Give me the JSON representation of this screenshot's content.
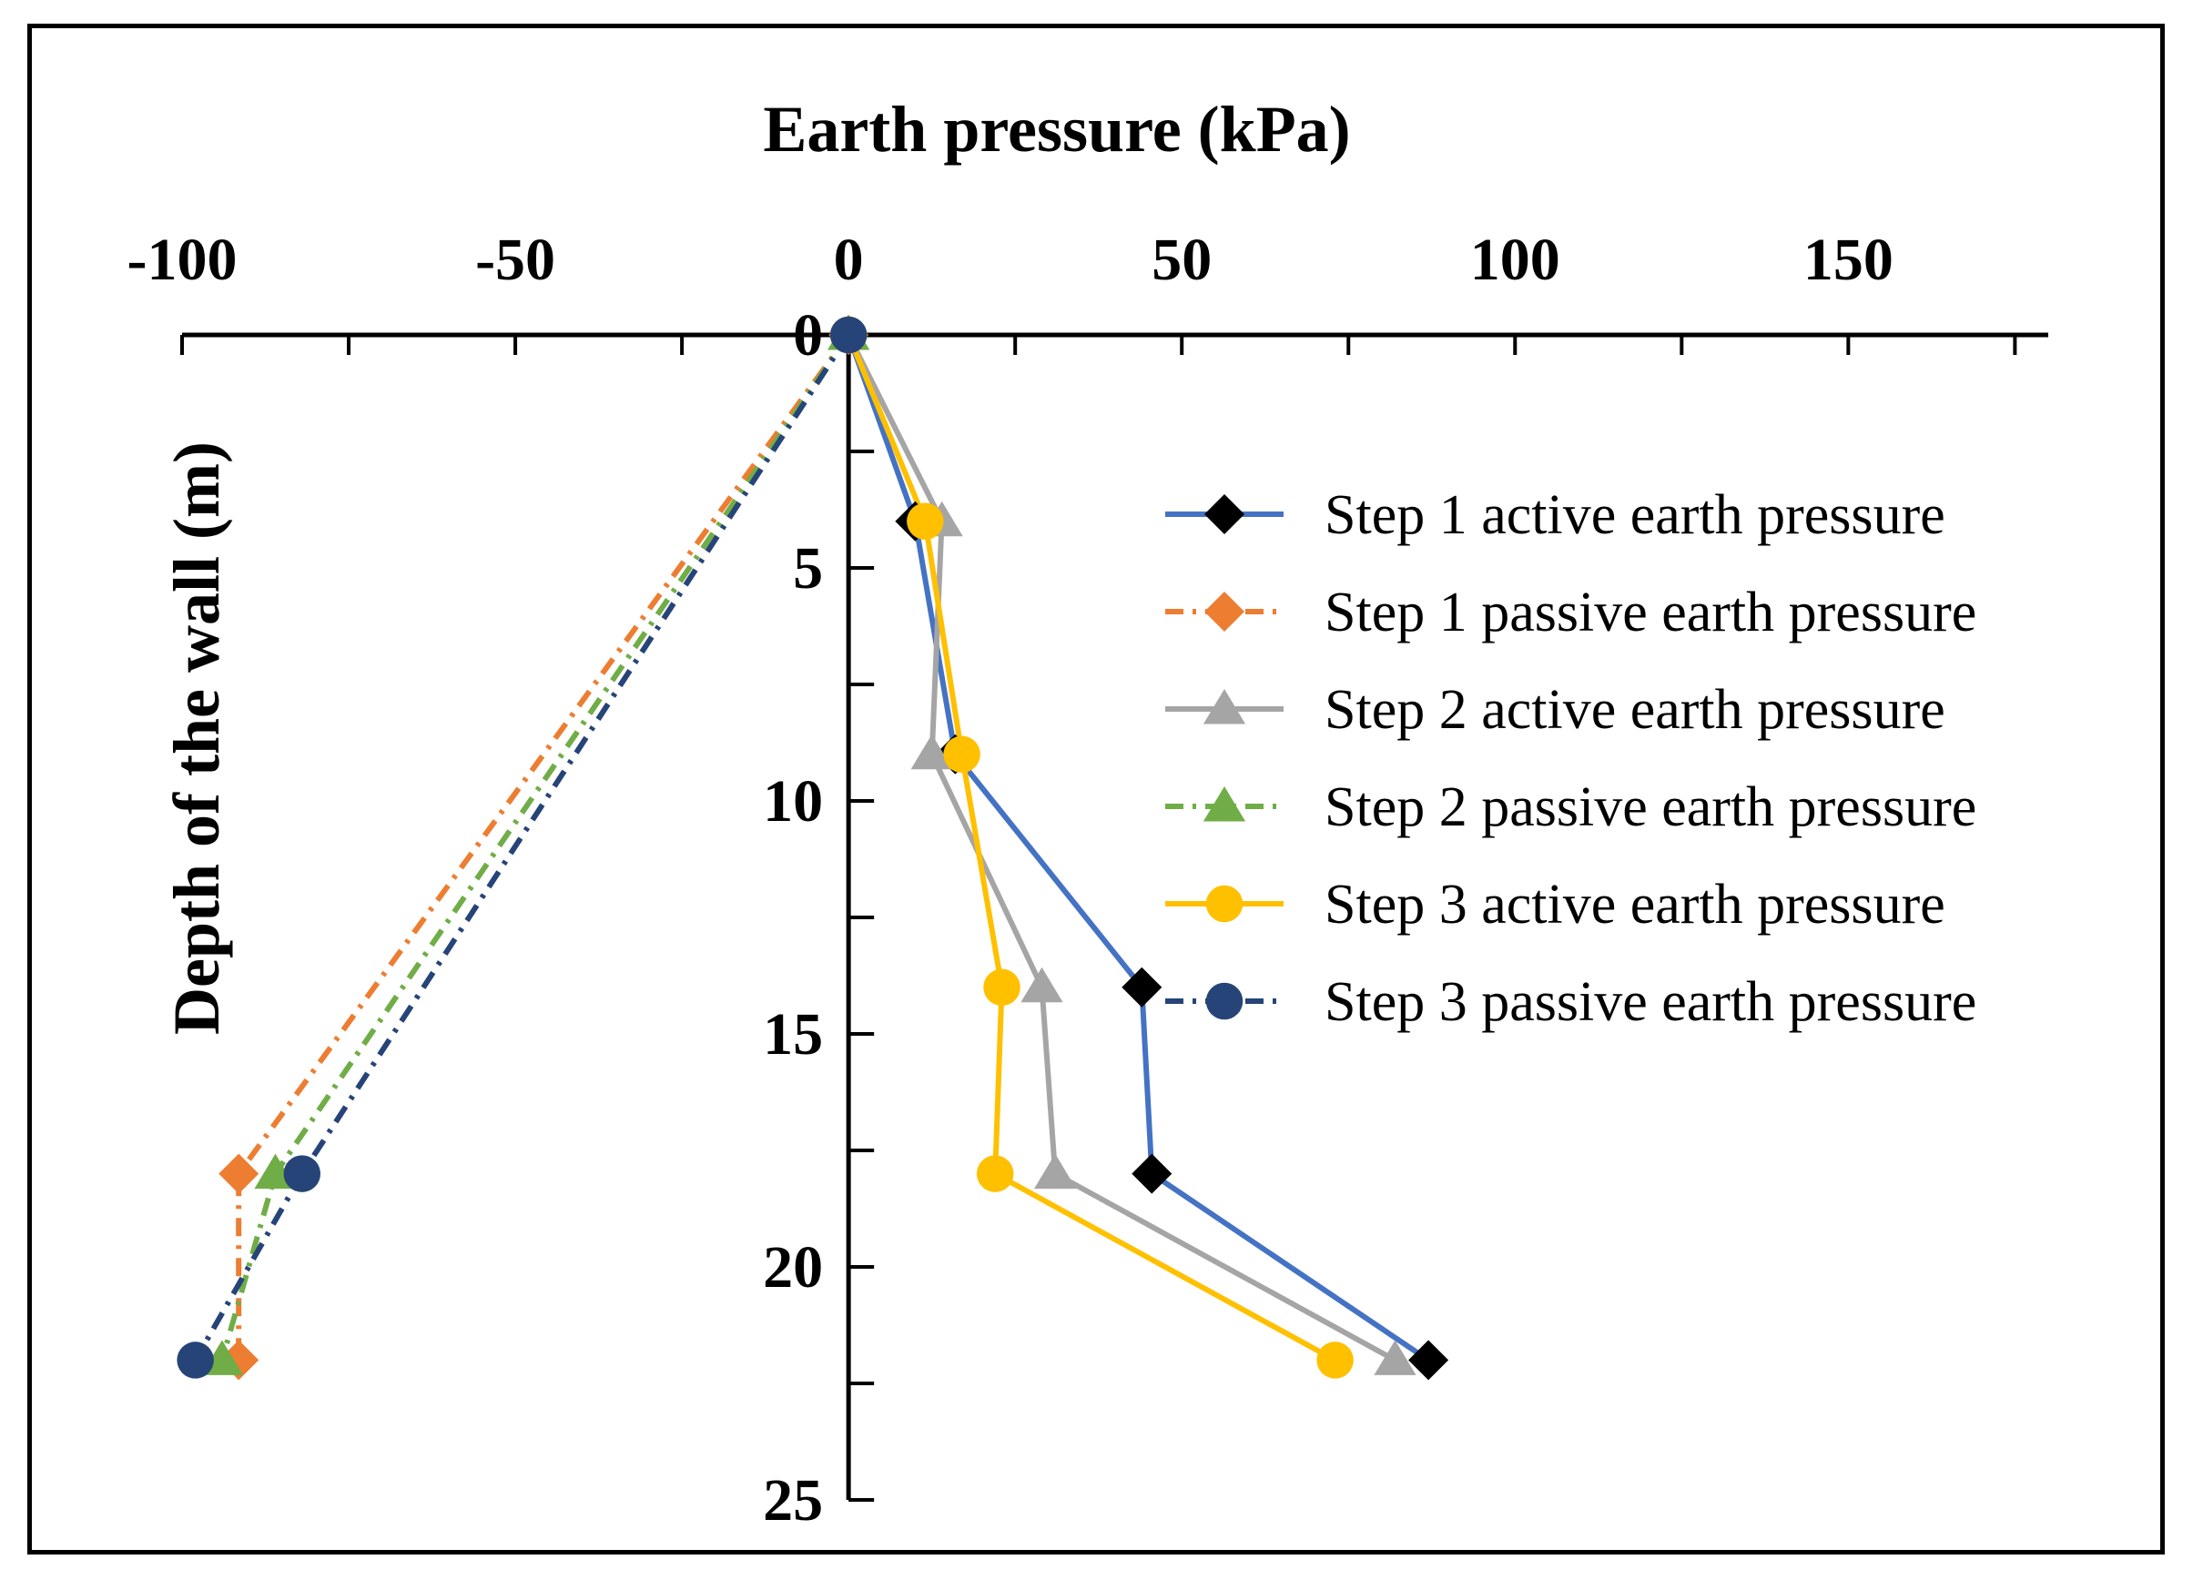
{
  "chart_data": {
    "type": "line",
    "title": "Earth pressure (kPa)",
    "xlabel": "Earth pressure (kPa)",
    "ylabel": "Depth of the wall (m)",
    "xlim": [
      -100,
      180
    ],
    "ylim": [
      25,
      0
    ],
    "x_ticks": [
      "-100",
      "-50",
      "0",
      "50",
      "100",
      "150"
    ],
    "y_ticks": [
      "0",
      "5",
      "10",
      "15",
      "20",
      "25"
    ],
    "x_axis_position": "top",
    "y_axis_crosses_at_x": 0,
    "grid": false,
    "legend_position": "right",
    "series": [
      {
        "name": "Step 1 active earth pressure",
        "color": "#4472C4",
        "marker": "diamond",
        "marker_color": "#000000",
        "line_style": "solid",
        "points": [
          [
            0,
            0
          ],
          [
            10,
            4
          ],
          [
            16,
            9
          ],
          [
            44,
            14
          ],
          [
            45.5,
            18
          ],
          [
            87,
            22
          ]
        ]
      },
      {
        "name": "Step 1 passive earth pressure",
        "color": "#ED7D31",
        "marker": "diamond",
        "marker_color": "#ED7D31",
        "line_style": "dashdot",
        "points": [
          [
            0,
            0
          ],
          [
            -91.5,
            18
          ],
          [
            -91.5,
            22
          ]
        ]
      },
      {
        "name": "Step 2 active earth pressure",
        "color": "#A5A5A5",
        "marker": "triangle",
        "marker_color": "#A5A5A5",
        "line_style": "solid",
        "points": [
          [
            0,
            0
          ],
          [
            14,
            4
          ],
          [
            12.5,
            9
          ],
          [
            29,
            14
          ],
          [
            31,
            18
          ],
          [
            82,
            22
          ]
        ]
      },
      {
        "name": "Step 2 passive earth pressure",
        "color": "#70AD47",
        "marker": "triangle",
        "marker_color": "#70AD47",
        "line_style": "dashdot",
        "points": [
          [
            0,
            0
          ],
          [
            -86,
            18
          ],
          [
            -94,
            22
          ]
        ]
      },
      {
        "name": "Step 3 active earth pressure",
        "color": "#FFC000",
        "marker": "circle",
        "marker_color": "#FFC000",
        "line_style": "solid",
        "points": [
          [
            0,
            0
          ],
          [
            11.5,
            4
          ],
          [
            17,
            9
          ],
          [
            23,
            14
          ],
          [
            22,
            18
          ],
          [
            73,
            22
          ]
        ]
      },
      {
        "name": "Step 3 passive earth pressure",
        "color": "#264478",
        "marker": "circle",
        "marker_color": "#264478",
        "line_style": "dashdot",
        "points": [
          [
            0,
            0
          ],
          [
            -82,
            18
          ],
          [
            -98,
            22
          ]
        ]
      }
    ]
  }
}
